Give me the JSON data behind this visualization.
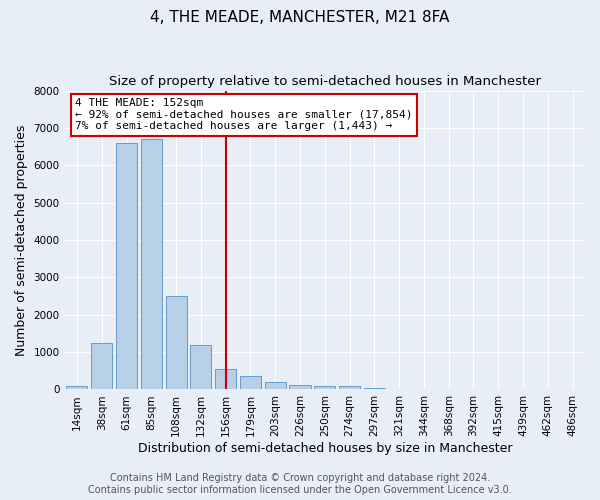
{
  "title": "4, THE MEADE, MANCHESTER, M21 8FA",
  "subtitle": "Size of property relative to semi-detached houses in Manchester",
  "xlabel": "Distribution of semi-detached houses by size in Manchester",
  "ylabel": "Number of semi-detached properties",
  "bar_labels": [
    "14sqm",
    "38sqm",
    "61sqm",
    "85sqm",
    "108sqm",
    "132sqm",
    "156sqm",
    "179sqm",
    "203sqm",
    "226sqm",
    "250sqm",
    "274sqm",
    "297sqm",
    "321sqm",
    "344sqm",
    "368sqm",
    "392sqm",
    "415sqm",
    "439sqm",
    "462sqm",
    "486sqm"
  ],
  "bar_values": [
    80,
    1250,
    6600,
    6700,
    2500,
    1200,
    550,
    350,
    200,
    130,
    100,
    80,
    50,
    0,
    0,
    0,
    0,
    0,
    0,
    0,
    0
  ],
  "bar_color": "#b8cfe8",
  "bar_edge_color": "#6699cc",
  "vline_index": 6,
  "vline_color": "#cc0000",
  "annotation_title": "4 THE MEADE: 152sqm",
  "annotation_line1": "← 92% of semi-detached houses are smaller (17,854)",
  "annotation_line2": "7% of semi-detached houses are larger (1,443) →",
  "annotation_box_color": "#ffffff",
  "annotation_box_edge": "#cc0000",
  "ylim": [
    0,
    8000
  ],
  "yticks": [
    0,
    1000,
    2000,
    3000,
    4000,
    5000,
    6000,
    7000,
    8000
  ],
  "footer_line1": "Contains HM Land Registry data © Crown copyright and database right 2024.",
  "footer_line2": "Contains public sector information licensed under the Open Government Licence v3.0.",
  "bg_color": "#e8eef5",
  "title_fontsize": 11,
  "subtitle_fontsize": 9.5,
  "tick_fontsize": 7.5,
  "ylabel_fontsize": 9,
  "xlabel_fontsize": 9,
  "footer_fontsize": 7,
  "annotation_fontsize": 8
}
